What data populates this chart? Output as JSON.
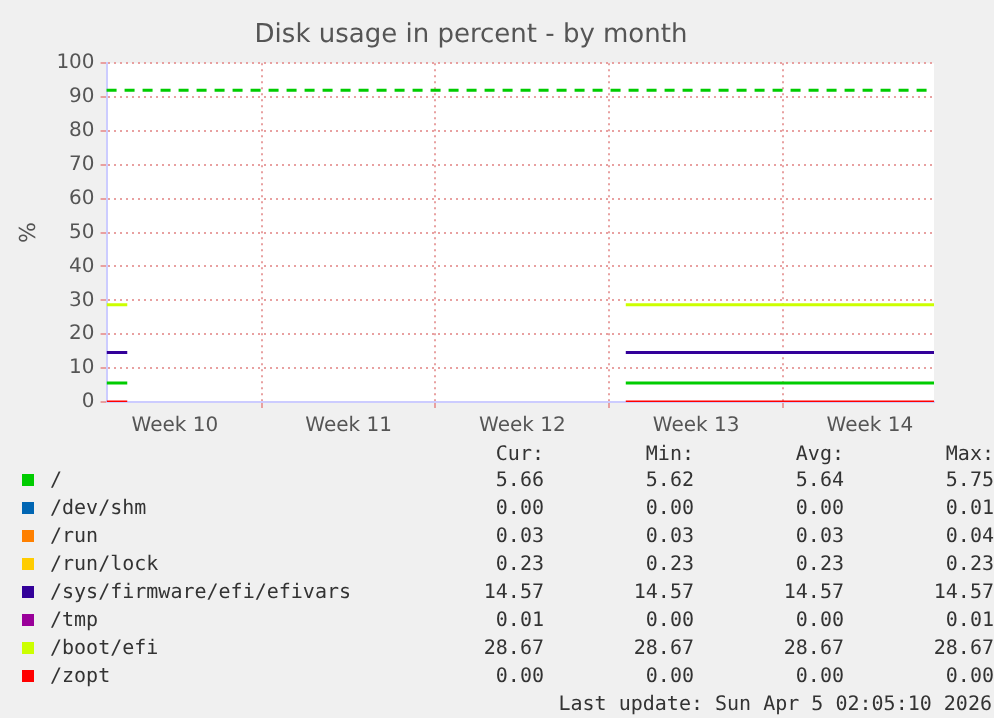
{
  "chart_data": {
    "type": "line",
    "title": "Disk usage in percent - by month",
    "ylabel": "%",
    "x": [
      "2026-03-02T18:00",
      "2026-03-03T14:00",
      "2026-03-13T00:00",
      "2026-03-23T16:00",
      "2026-04-05T02:00"
    ],
    "xlim": [
      "2026-03-02T18:00",
      "2026-04-05T02:00"
    ],
    "xticks": [
      {
        "value": "2026-03-05T12:00",
        "label": "Week 10"
      },
      {
        "value": "2026-03-09T00:00",
        "label": null
      },
      {
        "value": "2026-03-12T12:00",
        "label": "Week 11"
      },
      {
        "value": "2026-03-16T00:00",
        "label": null
      },
      {
        "value": "2026-03-19T12:00",
        "label": "Week 12"
      },
      {
        "value": "2026-03-23T00:00",
        "label": null
      },
      {
        "value": "2026-03-26T12:00",
        "label": "Week 13"
      },
      {
        "value": "2026-03-30T00:00",
        "label": null
      },
      {
        "value": "2026-04-02T12:00",
        "label": "Week 14"
      }
    ],
    "ylim": [
      0,
      100
    ],
    "yticks": [
      0,
      10,
      20,
      30,
      40,
      50,
      60,
      70,
      80,
      90,
      100
    ],
    "grid": true,
    "legend": "bottom",
    "marker": "none",
    "line_style": "solid",
    "series": [
      {
        "name": "/",
        "color": "#00cc00",
        "values": [
          5.6,
          5.6,
          null,
          5.6,
          5.6
        ]
      },
      {
        "name": "/dev/shm",
        "color": "#0066b3",
        "values": [
          null,
          null,
          null,
          null,
          null
        ]
      },
      {
        "name": "/run",
        "color": "#ff8000",
        "values": [
          null,
          null,
          null,
          null,
          null
        ]
      },
      {
        "name": "/run/lock",
        "color": "#ffcc00",
        "values": [
          null,
          null,
          null,
          null,
          null
        ]
      },
      {
        "name": "/sys/firmware/efi/efivars",
        "color": "#330099",
        "values": [
          14.6,
          14.6,
          null,
          14.6,
          14.6
        ]
      },
      {
        "name": "/tmp",
        "color": "#990099",
        "values": [
          null,
          null,
          null,
          null,
          null
        ]
      },
      {
        "name": "/boot/efi",
        "color": "#ccff00",
        "values": [
          28.7,
          28.7,
          null,
          28.7,
          28.7
        ]
      },
      {
        "name": "/zopt",
        "color": "#ff0000",
        "values": [
          0,
          0,
          null,
          0,
          0
        ]
      }
    ],
    "ref_lines": [
      {
        "axis": "y",
        "value": 92,
        "color": "#00cc00",
        "line_style": "dashed"
      }
    ],
    "annotations": [
      "Cur:",
      "Min:",
      "Avg:",
      "Max:",
      "5.66",
      "5.62",
      "5.64",
      "5.75",
      "0.00",
      "0.00",
      "0.00",
      "0.01",
      "0.03",
      "0.03",
      "0.03",
      "0.04",
      "0.23",
      "0.23",
      "0.23",
      "0.23",
      "14.57",
      "14.57",
      "14.57",
      "14.57",
      "0.01",
      "0.00",
      "0.00",
      "0.01",
      "28.67",
      "28.67",
      "28.67",
      "28.67",
      "0.00",
      "0.00",
      "0.00",
      "0.00",
      "Last update: Sun Apr  5 02:05:10 2026"
    ]
  }
}
